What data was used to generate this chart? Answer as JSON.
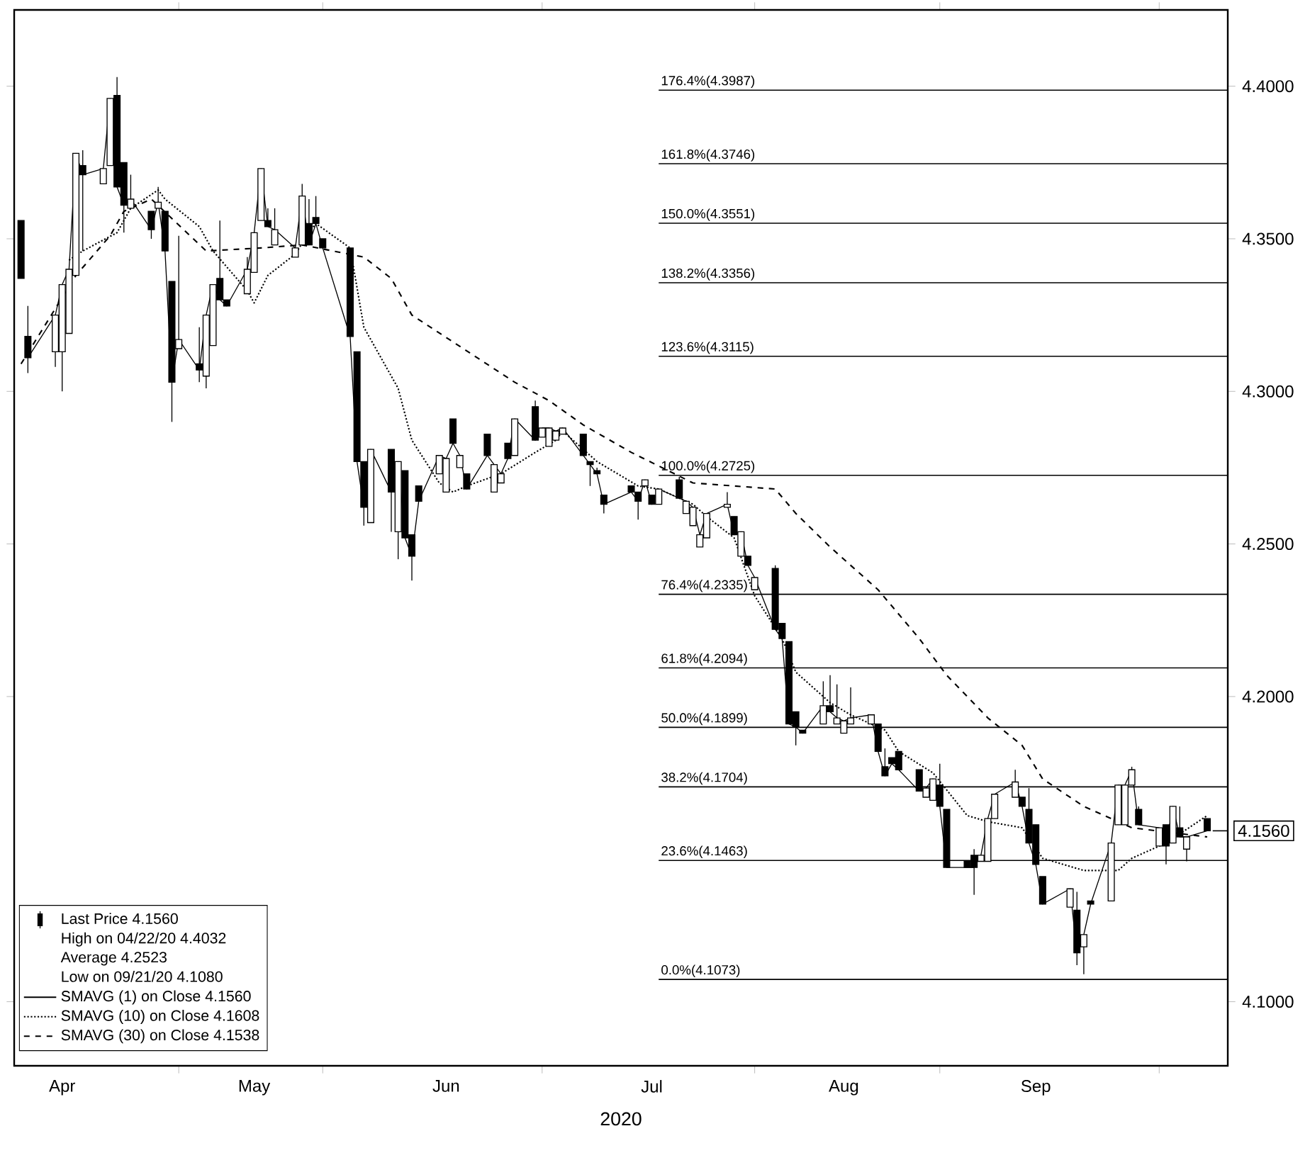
{
  "chart_data": {
    "type": "candlestick",
    "x": [
      "2020-04-08",
      "2020-04-09",
      "2020-04-13",
      "2020-04-14",
      "2020-04-15",
      "2020-04-16",
      "2020-04-17",
      "2020-04-20",
      "2020-04-21",
      "2020-04-22",
      "2020-04-23",
      "2020-04-24",
      "2020-04-27",
      "2020-04-28",
      "2020-04-29",
      "2020-04-30",
      "2020-05-01",
      "2020-05-04",
      "2020-05-05",
      "2020-05-06",
      "2020-05-07",
      "2020-05-08",
      "2020-05-11",
      "2020-05-12",
      "2020-05-13",
      "2020-05-14",
      "2020-05-15",
      "2020-05-18",
      "2020-05-19",
      "2020-05-20",
      "2020-05-21",
      "2020-05-22",
      "2020-05-26",
      "2020-05-27",
      "2020-05-28",
      "2020-05-29",
      "2020-06-01",
      "2020-06-02",
      "2020-06-03",
      "2020-06-04",
      "2020-06-05",
      "2020-06-08",
      "2020-06-09",
      "2020-06-10",
      "2020-06-11",
      "2020-06-12",
      "2020-06-15",
      "2020-06-16",
      "2020-06-17",
      "2020-06-18",
      "2020-06-19",
      "2020-06-22",
      "2020-06-23",
      "2020-06-24",
      "2020-06-25",
      "2020-06-26",
      "2020-06-29",
      "2020-06-30",
      "2020-07-01",
      "2020-07-02",
      "2020-07-06",
      "2020-07-07",
      "2020-07-08",
      "2020-07-09",
      "2020-07-10",
      "2020-07-13",
      "2020-07-14",
      "2020-07-15",
      "2020-07-16",
      "2020-07-17",
      "2020-07-20",
      "2020-07-21",
      "2020-07-22",
      "2020-07-23",
      "2020-07-24",
      "2020-07-27",
      "2020-07-28",
      "2020-07-29",
      "2020-07-30",
      "2020-07-31",
      "2020-08-03",
      "2020-08-04",
      "2020-08-05",
      "2020-08-06",
      "2020-08-07",
      "2020-08-10",
      "2020-08-11",
      "2020-08-12",
      "2020-08-13",
      "2020-08-14",
      "2020-08-17",
      "2020-08-18",
      "2020-08-19",
      "2020-08-20",
      "2020-08-21",
      "2020-08-24",
      "2020-08-25",
      "2020-08-26",
      "2020-08-27",
      "2020-08-28",
      "2020-08-31",
      "2020-09-01",
      "2020-09-02",
      "2020-09-03",
      "2020-09-04",
      "2020-09-08",
      "2020-09-09",
      "2020-09-10",
      "2020-09-11",
      "2020-09-14",
      "2020-09-15",
      "2020-09-16",
      "2020-09-17",
      "2020-09-18",
      "2020-09-21",
      "2020-09-22",
      "2020-09-23",
      "2020-09-24",
      "2020-09-25",
      "2020-09-28"
    ],
    "series": [
      {
        "name": "Last Price 4.1560",
        "color": "#000000",
        "ohlc": [
          [
            4.356,
            4.356,
            4.337,
            4.337
          ],
          [
            4.318,
            4.328,
            4.306,
            4.311
          ],
          [
            4.313,
            4.325,
            4.308,
            4.325
          ],
          [
            4.313,
            4.335,
            4.3,
            4.335
          ],
          [
            4.319,
            4.34,
            4.319,
            4.34
          ],
          [
            4.338,
            4.378,
            4.338,
            4.378
          ],
          [
            4.374,
            4.379,
            4.346,
            4.371
          ],
          [
            4.368,
            4.373,
            4.368,
            4.373
          ],
          [
            4.374,
            4.396,
            4.374,
            4.396
          ],
          [
            4.397,
            4.403,
            4.367,
            4.367
          ],
          [
            4.375,
            4.375,
            4.352,
            4.361
          ],
          [
            4.36,
            4.371,
            4.36,
            4.363
          ],
          [
            4.359,
            4.359,
            4.35,
            4.353
          ],
          [
            4.36,
            4.367,
            4.36,
            4.362
          ],
          [
            4.359,
            4.359,
            4.346,
            4.346
          ],
          [
            4.336,
            4.336,
            4.29,
            4.303
          ],
          [
            4.314,
            4.351,
            4.314,
            4.317
          ],
          [
            4.309,
            4.321,
            4.303,
            4.307
          ],
          [
            4.305,
            4.325,
            4.301,
            4.325
          ],
          [
            4.315,
            4.335,
            4.315,
            4.335
          ],
          [
            4.337,
            4.356,
            4.33,
            4.33
          ],
          [
            4.33,
            4.33,
            4.328,
            4.328
          ],
          [
            4.332,
            4.344,
            4.332,
            4.34
          ],
          [
            4.339,
            4.352,
            4.339,
            4.352
          ],
          [
            4.356,
            4.373,
            4.356,
            4.373
          ],
          [
            4.356,
            4.36,
            4.354,
            4.354
          ],
          [
            4.348,
            4.36,
            4.348,
            4.353
          ],
          [
            4.344,
            4.347,
            4.344,
            4.347
          ],
          [
            4.348,
            4.368,
            4.348,
            4.364
          ],
          [
            4.355,
            4.363,
            4.348,
            4.348
          ],
          [
            4.357,
            4.364,
            4.355,
            4.355
          ],
          [
            4.35,
            4.35,
            4.347,
            4.347
          ],
          [
            4.347,
            4.347,
            4.318,
            4.318
          ],
          [
            4.313,
            4.313,
            4.277,
            4.277
          ],
          [
            4.277,
            4.277,
            4.256,
            4.262
          ],
          [
            4.257,
            4.281,
            4.257,
            4.281
          ],
          [
            4.281,
            4.281,
            4.254,
            4.267
          ],
          [
            4.254,
            4.277,
            4.245,
            4.277
          ],
          [
            4.274,
            4.274,
            4.252,
            4.252
          ],
          [
            4.253,
            4.253,
            4.238,
            4.246
          ],
          [
            4.269,
            4.269,
            4.264,
            4.264
          ],
          [
            4.273,
            4.279,
            4.273,
            4.279
          ],
          [
            4.267,
            4.278,
            4.267,
            4.278
          ],
          [
            4.291,
            4.291,
            4.283,
            4.283
          ],
          [
            4.275,
            4.279,
            4.275,
            4.279
          ],
          [
            4.273,
            4.273,
            4.268,
            4.268
          ],
          [
            4.286,
            4.286,
            4.279,
            4.279
          ],
          [
            4.267,
            4.276,
            4.267,
            4.276
          ],
          [
            4.27,
            4.273,
            4.27,
            4.273
          ],
          [
            4.283,
            4.283,
            4.278,
            4.278
          ],
          [
            4.279,
            4.291,
            4.279,
            4.291
          ],
          [
            4.295,
            4.297,
            4.284,
            4.284
          ],
          [
            4.285,
            4.288,
            4.285,
            4.288
          ],
          [
            4.282,
            4.288,
            4.282,
            4.288
          ],
          [
            4.284,
            4.287,
            4.284,
            4.287
          ],
          [
            4.286,
            4.288,
            4.286,
            4.288
          ],
          [
            4.286,
            4.286,
            4.279,
            4.279
          ],
          [
            4.277,
            4.277,
            4.269,
            4.276
          ],
          [
            4.274,
            4.275,
            4.273,
            4.273
          ],
          [
            4.266,
            4.266,
            4.26,
            4.263
          ],
          [
            4.269,
            4.269,
            4.267,
            4.267
          ],
          [
            4.267,
            4.267,
            4.258,
            4.264
          ],
          [
            4.269,
            4.271,
            4.269,
            4.271
          ],
          [
            4.266,
            4.266,
            4.263,
            4.263
          ],
          [
            4.263,
            4.268,
            4.263,
            4.268
          ],
          [
            4.271,
            4.272,
            4.265,
            4.265
          ],
          [
            4.26,
            4.264,
            4.26,
            4.264
          ],
          [
            4.256,
            4.262,
            4.256,
            4.262
          ],
          [
            4.249,
            4.253,
            4.249,
            4.253
          ],
          [
            4.252,
            4.26,
            4.252,
            4.26
          ],
          [
            4.262,
            4.267,
            4.262,
            4.263
          ],
          [
            4.259,
            4.259,
            4.253,
            4.253
          ],
          [
            4.246,
            4.254,
            4.246,
            4.254
          ],
          [
            4.246,
            4.246,
            4.243,
            4.243
          ],
          [
            4.235,
            4.239,
            4.235,
            4.239
          ],
          [
            4.242,
            4.243,
            4.222,
            4.222
          ],
          [
            4.224,
            4.224,
            4.219,
            4.219
          ],
          [
            4.218,
            4.218,
            4.191,
            4.191
          ],
          [
            4.195,
            4.195,
            4.184,
            4.19
          ],
          [
            4.189,
            4.189,
            4.188,
            4.188
          ],
          [
            4.191,
            4.205,
            4.191,
            4.197
          ],
          [
            4.197,
            4.207,
            4.195,
            4.195
          ],
          [
            4.191,
            4.204,
            4.191,
            4.193
          ],
          [
            4.188,
            4.192,
            4.188,
            4.192
          ],
          [
            4.191,
            4.203,
            4.191,
            4.193
          ],
          [
            4.191,
            4.194,
            4.191,
            4.194
          ],
          [
            4.191,
            4.191,
            4.182,
            4.182
          ],
          [
            4.177,
            4.183,
            4.174,
            4.174
          ],
          [
            4.18,
            4.18,
            4.178,
            4.178
          ],
          [
            4.182,
            4.182,
            4.176,
            4.176
          ],
          [
            4.176,
            4.176,
            4.169,
            4.169
          ],
          [
            4.167,
            4.17,
            4.167,
            4.17
          ],
          [
            4.166,
            4.173,
            4.166,
            4.173
          ],
          [
            4.171,
            4.178,
            4.164,
            4.164
          ],
          [
            4.163,
            4.163,
            4.144,
            4.144
          ],
          [
            4.146,
            4.146,
            4.144,
            4.144
          ],
          [
            4.148,
            4.15,
            4.135,
            4.144
          ],
          [
            4.146,
            4.148,
            4.146,
            4.148
          ],
          [
            4.146,
            4.16,
            4.146,
            4.16
          ],
          [
            4.16,
            4.168,
            4.16,
            4.168
          ],
          [
            4.167,
            4.176,
            4.167,
            4.172
          ],
          [
            4.167,
            4.167,
            4.164,
            4.164
          ],
          [
            4.163,
            4.17,
            4.152,
            4.152
          ],
          [
            4.158,
            4.158,
            4.145,
            4.145
          ],
          [
            4.141,
            4.141,
            4.132,
            4.132
          ],
          [
            4.131,
            4.137,
            4.131,
            4.137
          ],
          [
            4.13,
            4.136,
            4.112,
            4.116
          ],
          [
            4.118,
            4.122,
            4.109,
            4.122
          ],
          [
            4.133,
            4.133,
            4.132,
            4.132
          ],
          [
            4.133,
            4.152,
            4.133,
            4.152
          ],
          [
            4.158,
            4.171,
            4.158,
            4.171
          ],
          [
            4.158,
            4.171,
            4.158,
            4.171
          ],
          [
            4.171,
            4.177,
            4.171,
            4.176
          ],
          [
            4.163,
            4.164,
            4.158,
            4.158
          ],
          [
            4.151,
            4.157,
            4.151,
            4.157
          ],
          [
            4.158,
            4.158,
            4.145,
            4.151
          ],
          [
            4.152,
            4.164,
            4.152,
            4.164
          ],
          [
            4.157,
            4.164,
            4.154,
            4.154
          ],
          [
            4.15,
            4.154,
            4.146,
            4.154
          ],
          [
            4.16,
            4.16,
            4.156,
            4.156
          ]
        ]
      },
      {
        "name": "SMAVG (1)  on Close 4.1560",
        "type": "line",
        "color": "#000000",
        "line_style": "solid",
        "values": [
          null,
          4.311,
          4.325,
          4.335,
          4.34,
          4.378,
          4.371,
          4.373,
          4.396,
          4.367,
          4.361,
          4.363,
          4.353,
          4.362,
          4.346,
          4.303,
          4.317,
          4.307,
          4.325,
          4.335,
          4.33,
          4.328,
          4.34,
          4.352,
          4.373,
          4.354,
          4.353,
          4.347,
          4.364,
          4.348,
          4.355,
          4.347,
          4.318,
          4.277,
          4.262,
          4.281,
          4.267,
          4.277,
          4.252,
          4.246,
          4.264,
          4.279,
          4.278,
          4.283,
          4.279,
          4.268,
          4.279,
          4.276,
          4.273,
          4.278,
          4.291,
          4.284,
          4.288,
          4.288,
          4.287,
          4.288,
          4.279,
          4.276,
          4.273,
          4.263,
          4.267,
          4.264,
          4.271,
          4.263,
          4.268,
          4.265,
          4.264,
          4.262,
          4.253,
          4.26,
          4.263,
          4.253,
          4.254,
          4.243,
          4.239,
          4.222,
          4.219,
          4.191,
          4.19,
          4.188,
          4.197,
          4.195,
          4.193,
          4.192,
          4.193,
          4.194,
          4.182,
          4.174,
          4.178,
          4.176,
          4.169,
          4.17,
          4.173,
          4.164,
          4.144,
          4.144,
          4.144,
          4.148,
          4.16,
          4.168,
          4.172,
          4.164,
          4.152,
          4.145,
          4.132,
          4.137,
          4.116,
          4.122,
          4.132,
          4.152,
          4.171,
          4.171,
          4.176,
          4.158,
          4.157,
          4.151,
          4.164,
          4.154,
          4.154,
          4.156
        ]
      },
      {
        "name": "SMAVG (10)  on Close 4.1608",
        "type": "line",
        "color": "#000000",
        "line_style": "dotted",
        "x": [
          "2020-04-15",
          "2020-04-17",
          "2020-04-22",
          "2020-04-24",
          "2020-04-28",
          "2020-04-29",
          "2020-05-04",
          "2020-05-06",
          "2020-05-11",
          "2020-05-12",
          "2020-05-14",
          "2020-05-18",
          "2020-05-20",
          "2020-05-21",
          "2020-05-26",
          "2020-05-28",
          "2020-06-02",
          "2020-06-04",
          "2020-06-08",
          "2020-06-10",
          "2020-06-12",
          "2020-06-17",
          "2020-06-22",
          "2020-06-25",
          "2020-06-26",
          "2020-07-01",
          "2020-07-07",
          "2020-07-10",
          "2020-07-15",
          "2020-07-17",
          "2020-07-21",
          "2020-07-24",
          "2020-07-28",
          "2020-07-30",
          "2020-08-04",
          "2020-08-07",
          "2020-08-12",
          "2020-08-14",
          "2020-08-19",
          "2020-08-24",
          "2020-08-27",
          "2020-09-01",
          "2020-09-04",
          "2020-09-10",
          "2020-09-15",
          "2020-09-17",
          "2020-09-22",
          "2020-09-28"
        ],
        "values": [
          4.343,
          4.346,
          4.352,
          4.36,
          4.366,
          4.363,
          4.354,
          4.346,
          4.333,
          4.329,
          4.338,
          4.345,
          4.352,
          4.355,
          4.347,
          4.321,
          4.301,
          4.284,
          4.27,
          4.267,
          4.269,
          4.273,
          4.28,
          4.284,
          4.287,
          4.277,
          4.269,
          4.268,
          4.263,
          4.259,
          4.252,
          4.233,
          4.219,
          4.208,
          4.198,
          4.194,
          4.189,
          4.182,
          4.175,
          4.161,
          4.159,
          4.157,
          4.147,
          4.143,
          4.143,
          4.147,
          4.152,
          4.161
        ]
      },
      {
        "name": "SMAVG (30)  on Close 4.1538",
        "type": "line",
        "color": "#000000",
        "line_style": "dashed",
        "x": [
          "2020-04-08",
          "2020-04-16",
          "2020-04-21",
          "2020-04-23",
          "2020-04-27",
          "2020-05-05",
          "2020-05-13",
          "2020-05-19",
          "2020-05-28",
          "2020-06-01",
          "2020-06-04",
          "2020-06-19",
          "2020-06-24",
          "2020-06-29",
          "2020-07-06",
          "2020-07-15",
          "2020-07-27",
          "2020-07-30",
          "2020-08-04",
          "2020-08-11",
          "2020-08-17",
          "2020-08-21",
          "2020-08-27",
          "2020-09-01",
          "2020-09-04",
          "2020-09-10",
          "2020-09-17",
          "2020-09-28"
        ],
        "values": [
          4.309,
          4.338,
          4.351,
          4.359,
          4.363,
          4.346,
          4.347,
          4.348,
          4.344,
          4.337,
          4.325,
          4.303,
          4.297,
          4.289,
          4.28,
          4.27,
          4.268,
          4.26,
          4.249,
          4.235,
          4.219,
          4.207,
          4.193,
          4.184,
          4.173,
          4.164,
          4.157,
          4.154
        ]
      }
    ],
    "xlim": [
      "2020-04-07",
      "2020-10-01"
    ],
    "xticks": [
      {
        "value": "2020-04-14",
        "label": "Apr"
      },
      {
        "value": "2020-05-01",
        "label": null
      },
      {
        "value": "2020-05-12",
        "label": "May"
      },
      {
        "value": "2020-05-22",
        "label": null
      },
      {
        "value": "2020-06-09",
        "label": "Jun"
      },
      {
        "value": "2020-06-23",
        "label": null
      },
      {
        "value": "2020-07-09",
        "label": "Jul"
      },
      {
        "value": "2020-07-24",
        "label": null
      },
      {
        "value": "2020-08-06",
        "label": "Aug"
      },
      {
        "value": "2020-08-20",
        "label": null
      },
      {
        "value": "2020-09-03",
        "label": "Sep"
      },
      {
        "value": "2020-09-21",
        "label": null
      }
    ],
    "xlabel": "2020",
    "ylim": [
      4.079,
      4.425
    ],
    "yticks": [
      {
        "value": 4.1,
        "label": "4.1000"
      },
      {
        "value": 4.2,
        "label": "4.2000"
      },
      {
        "value": 4.25,
        "label": "4.2500"
      },
      {
        "value": 4.3,
        "label": "4.3000"
      },
      {
        "value": 4.35,
        "label": "4.3500"
      },
      {
        "value": 4.4,
        "label": "4.4000"
      }
    ],
    "ref_lines": [
      {
        "axis": "y",
        "value": 4.3987,
        "color": "#000000"
      },
      {
        "axis": "y",
        "value": 4.3746,
        "color": "#000000"
      },
      {
        "axis": "y",
        "value": 4.3551,
        "color": "#000000"
      },
      {
        "axis": "y",
        "value": 4.3356,
        "color": "#000000"
      },
      {
        "axis": "y",
        "value": 4.3115,
        "color": "#000000"
      },
      {
        "axis": "y",
        "value": 4.2725,
        "color": "#000000"
      },
      {
        "axis": "y",
        "value": 4.2335,
        "color": "#000000"
      },
      {
        "axis": "y",
        "value": 4.2094,
        "color": "#000000"
      },
      {
        "axis": "y",
        "value": 4.1899,
        "color": "#000000"
      },
      {
        "axis": "y",
        "value": 4.1704,
        "color": "#000000"
      },
      {
        "axis": "y",
        "value": 4.1463,
        "color": "#000000"
      },
      {
        "axis": "y",
        "value": 4.1073,
        "color": "#000000"
      }
    ],
    "annotations": [
      "High on 04/22/20 4.4032",
      "Average 4.2523",
      "Low on 09/21/20 4.1080",
      {
        "text": "4.1560",
        "x": "2020-09-28",
        "y": 4.156
      },
      {
        "text": "176.4%(4.3987)",
        "x": "2020-07-10",
        "y": 4.3987
      },
      {
        "text": "161.8%(4.3746)",
        "x": "2020-07-10",
        "y": 4.3746
      },
      {
        "text": "150.0%(4.3551)",
        "x": "2020-07-10",
        "y": 4.3551
      },
      {
        "text": "138.2%(4.3356)",
        "x": "2020-07-10",
        "y": 4.3356
      },
      {
        "text": "123.6%(4.3115)",
        "x": "2020-07-10",
        "y": 4.3115
      },
      {
        "text": "100.0%(4.2725)",
        "x": "2020-07-10",
        "y": 4.2725
      },
      {
        "text": "76.4%(4.2335)",
        "x": "2020-07-10",
        "y": 4.2335
      },
      {
        "text": "61.8%(4.2094)",
        "x": "2020-07-10",
        "y": 4.2094
      },
      {
        "text": "50.0%(4.1899)",
        "x": "2020-07-10",
        "y": 4.1899
      },
      {
        "text": "38.2%(4.1704)",
        "x": "2020-07-10",
        "y": 4.1704
      },
      {
        "text": "23.6%(4.1463)",
        "x": "2020-07-10",
        "y": 4.1463
      },
      {
        "text": "0.0%(4.1073)",
        "x": "2020-07-10",
        "y": 4.1073
      }
    ],
    "legend": "bottom left"
  }
}
